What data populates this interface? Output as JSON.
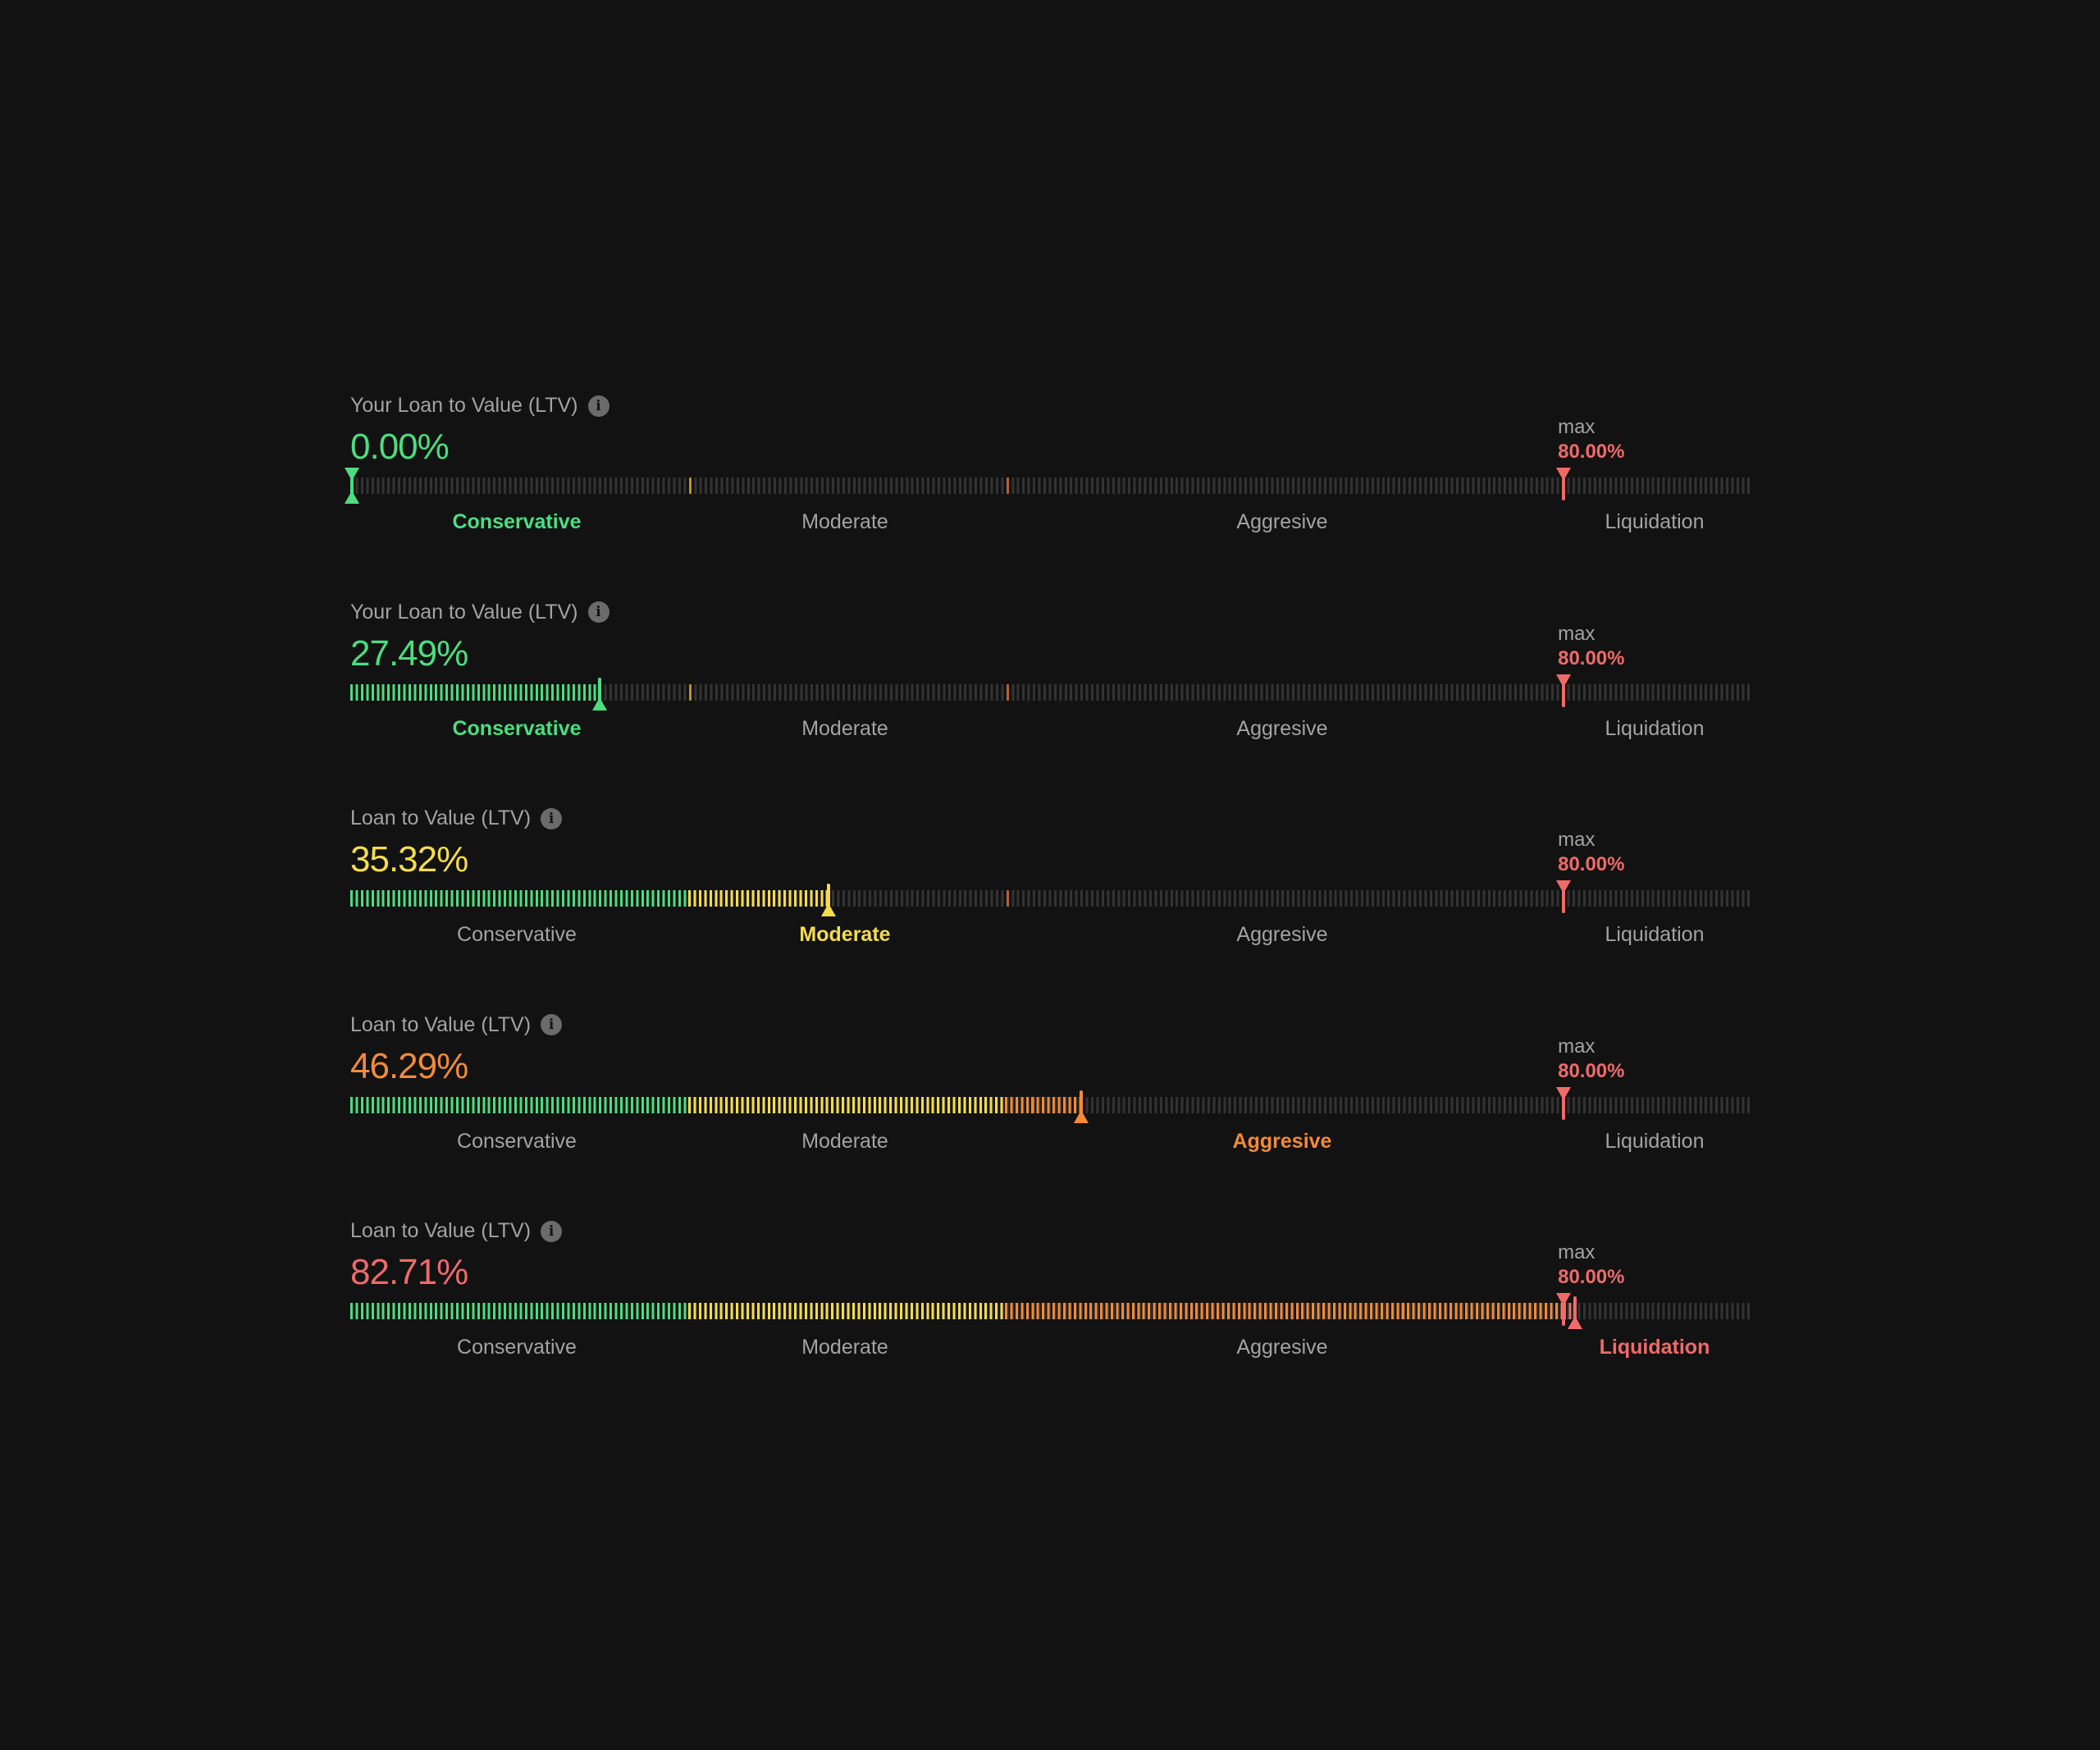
{
  "colors": {
    "conservative": "#4ade80",
    "moderate": "#f5dc4a",
    "aggressive": "#f28a3a",
    "liquidation": "#f06a6a",
    "track": "#333333"
  },
  "zones": [
    "Conservative",
    "Moderate",
    "Aggresive",
    "Liquidation"
  ],
  "max_label": "max",
  "max_value": "80.00%",
  "max_ltv": 80,
  "rows": [
    {
      "label": "Your Loan to Value (LTV)",
      "value_text": "0.00%",
      "ltv": 0,
      "zone": 0
    },
    {
      "label": "Your Loan to Value (LTV)",
      "value_text": "27.49%",
      "ltv": 27.49,
      "zone": 0
    },
    {
      "label": "Loan to Value (LTV)",
      "value_text": "35.32%",
      "ltv": 35.32,
      "zone": 1
    },
    {
      "label": "Loan to Value (LTV)",
      "value_text": "46.29%",
      "ltv": 46.29,
      "zone": 2
    },
    {
      "label": "Loan to Value (LTV)",
      "value_text": "82.71%",
      "ltv": 82.71,
      "zone": 3
    }
  ],
  "info_icon": "info-icon"
}
